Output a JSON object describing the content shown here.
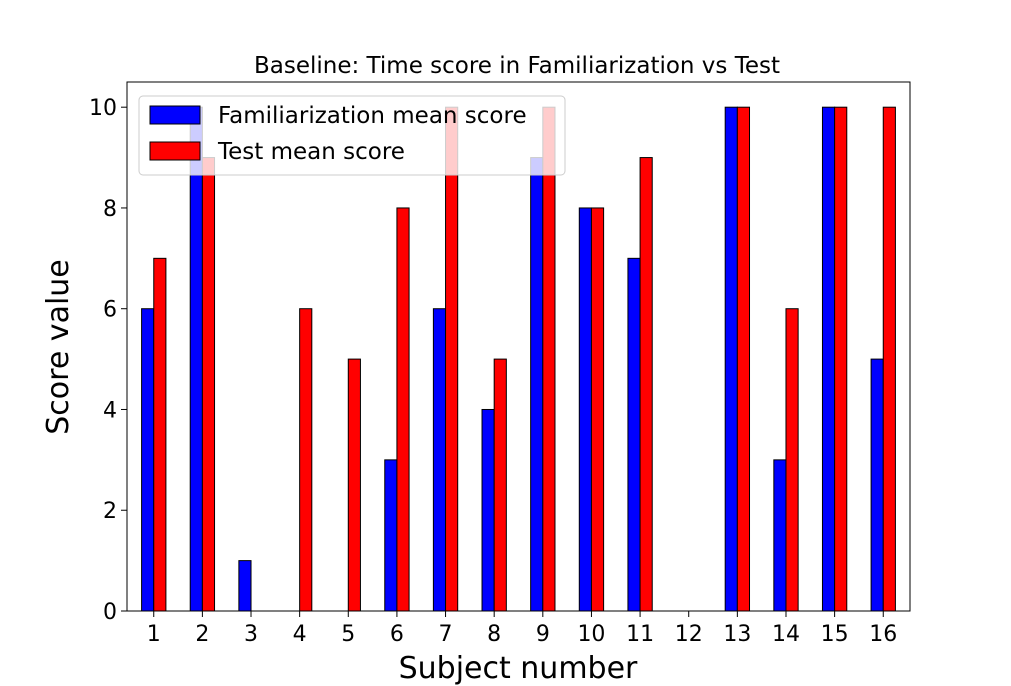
{
  "chart_data": {
    "type": "bar",
    "title": "Baseline: Time score in Familiarization vs Test",
    "xlabel": "Subject number",
    "ylabel": "Score value",
    "categories": [
      "1",
      "2",
      "3",
      "4",
      "5",
      "6",
      "7",
      "8",
      "9",
      "10",
      "11",
      "12",
      "13",
      "14",
      "15",
      "16"
    ],
    "series": [
      {
        "name": "Familiarization mean score",
        "color": "#0000ff",
        "values": [
          6,
          10,
          1,
          0,
          0,
          3,
          6,
          4,
          9,
          8,
          7,
          0,
          10,
          3,
          10,
          5
        ]
      },
      {
        "name": "Test mean score",
        "color": "#ff0000",
        "values": [
          7,
          9,
          0,
          6,
          5,
          8,
          10,
          5,
          10,
          8,
          9,
          0,
          10,
          6,
          10,
          10
        ]
      }
    ],
    "ylim": [
      0,
      10.5
    ],
    "yticks": [
      "0",
      "2",
      "4",
      "6",
      "8",
      "10"
    ],
    "grid": false,
    "legend_position": "top-left"
  }
}
